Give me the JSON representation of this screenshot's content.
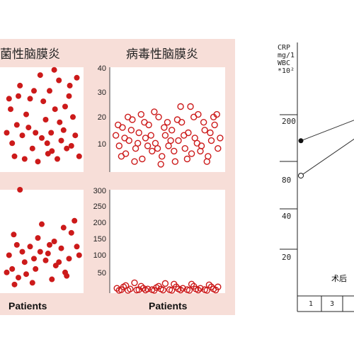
{
  "panels": {
    "bacterial_title": "菌性脑膜炎",
    "viral_title": "病毒性脑膜炎",
    "xlabel": "Patients",
    "top_ticks": [
      "40",
      "30",
      "20",
      "10"
    ],
    "bottom_ticks": [
      "300",
      "250",
      "200",
      "150",
      "100",
      "50"
    ]
  },
  "right_chart": {
    "ylabel_lines": [
      "CRP",
      "mg/1",
      "WBC",
      "*10²"
    ],
    "ticks": [
      "200",
      "80",
      "40",
      "20"
    ],
    "xlabel": "术后"
  },
  "colors": {
    "marker": "#cc1a1a",
    "background": "#f7ded8"
  },
  "chart_data": [
    {
      "type": "scatter",
      "title": "菌性脑膜炎",
      "xlabel": "Patients",
      "marker": "filled",
      "points": [
        [
          10,
          24
        ],
        [
          22,
          33
        ],
        [
          35,
          28
        ],
        [
          48,
          37
        ],
        [
          60,
          31
        ],
        [
          72,
          35
        ],
        [
          85,
          29
        ],
        [
          95,
          36
        ],
        [
          18,
          18
        ],
        [
          30,
          22
        ],
        [
          42,
          15
        ],
        [
          55,
          20
        ],
        [
          67,
          24
        ],
        [
          78,
          16
        ],
        [
          90,
          21
        ],
        [
          12,
          11
        ],
        [
          25,
          14
        ],
        [
          38,
          9
        ],
        [
          50,
          13
        ],
        [
          63,
          8
        ],
        [
          75,
          12
        ],
        [
          88,
          10
        ],
        [
          15,
          6
        ],
        [
          28,
          5
        ],
        [
          45,
          4
        ],
        [
          58,
          7
        ],
        [
          70,
          5
        ],
        [
          82,
          9
        ],
        [
          98,
          6
        ],
        [
          33,
          17
        ],
        [
          52,
          27
        ],
        [
          66,
          39
        ],
        [
          80,
          25
        ],
        [
          93,
          14
        ],
        [
          20,
          29
        ],
        [
          40,
          31
        ],
        [
          57,
          11
        ],
        [
          73,
          19
        ],
        [
          86,
          33
        ],
        [
          5,
          15
        ],
        [
          8,
          28
        ],
        [
          62,
          15
        ]
      ]
    },
    {
      "type": "scatter",
      "title": "病毒性脑膜炎",
      "xlabel": "Patients",
      "ylim": [
        0,
        40
      ],
      "marker": "open",
      "points": [
        [
          3,
          14
        ],
        [
          6,
          10
        ],
        [
          9,
          17
        ],
        [
          12,
          7
        ],
        [
          15,
          12
        ],
        [
          18,
          20
        ],
        [
          21,
          9
        ],
        [
          24,
          15
        ],
        [
          27,
          5
        ],
        [
          30,
          13
        ],
        [
          33,
          18
        ],
        [
          36,
          8
        ],
        [
          39,
          11
        ],
        [
          42,
          21
        ],
        [
          45,
          6
        ],
        [
          48,
          14
        ],
        [
          51,
          10
        ],
        [
          54,
          16
        ],
        [
          57,
          4
        ],
        [
          60,
          12
        ],
        [
          63,
          19
        ],
        [
          66,
          9
        ],
        [
          69,
          15
        ],
        [
          72,
          7
        ],
        [
          75,
          13
        ],
        [
          78,
          22
        ],
        [
          81,
          10
        ],
        [
          84,
          16
        ],
        [
          87,
          6
        ],
        [
          90,
          12
        ],
        [
          93,
          18
        ],
        [
          96,
          9
        ],
        [
          5,
          18
        ],
        [
          11,
          13
        ],
        [
          17,
          16
        ],
        [
          23,
          11
        ],
        [
          29,
          19
        ],
        [
          35,
          14
        ],
        [
          41,
          9
        ],
        [
          47,
          17
        ],
        [
          53,
          12
        ],
        [
          59,
          20
        ],
        [
          65,
          14
        ],
        [
          71,
          25
        ],
        [
          77,
          11
        ],
        [
          83,
          19
        ],
        [
          89,
          15
        ],
        [
          95,
          22
        ],
        [
          8,
          6
        ],
        [
          20,
          4
        ],
        [
          44,
          3
        ],
        [
          62,
          25
        ],
        [
          68,
          5
        ],
        [
          86,
          4
        ],
        [
          98,
          13
        ],
        [
          14,
          21
        ],
        [
          26,
          22
        ],
        [
          38,
          23
        ],
        [
          50,
          19
        ],
        [
          74,
          21
        ],
        [
          92,
          21
        ],
        [
          56,
          8
        ],
        [
          32,
          10
        ],
        [
          80,
          8
        ]
      ]
    },
    {
      "type": "scatter",
      "title": "菌性脑膜炎",
      "xlabel": "Patients",
      "marker": "filled",
      "points": [
        [
          22,
          300
        ],
        [
          14,
          170
        ],
        [
          8,
          110
        ],
        [
          12,
          70
        ],
        [
          20,
          45
        ],
        [
          28,
          90
        ],
        [
          35,
          135
        ],
        [
          42,
          70
        ],
        [
          50,
          200
        ],
        [
          58,
          115
        ],
        [
          66,
          150
        ],
        [
          72,
          90
        ],
        [
          80,
          60
        ],
        [
          88,
          175
        ],
        [
          95,
          135
        ],
        [
          18,
          140
        ],
        [
          30,
          55
        ],
        [
          45,
          160
        ],
        [
          55,
          95
        ],
        [
          63,
          40
        ],
        [
          75,
          130
        ],
        [
          85,
          100
        ],
        [
          92,
          210
        ],
        [
          5,
          60
        ],
        [
          38,
          30
        ],
        [
          48,
          120
        ],
        [
          68,
          80
        ],
        [
          78,
          190
        ],
        [
          98,
          110
        ],
        [
          25,
          120
        ],
        [
          60,
          140
        ],
        [
          82,
          50
        ],
        [
          40,
          100
        ],
        [
          15,
          25
        ]
      ]
    },
    {
      "type": "scatter",
      "title": "病毒性脑膜炎",
      "xlabel": "Patients",
      "ylim": [
        0,
        300
      ],
      "marker": "open",
      "points": [
        [
          4,
          14
        ],
        [
          8,
          10
        ],
        [
          12,
          22
        ],
        [
          16,
          12
        ],
        [
          20,
          30
        ],
        [
          24,
          10
        ],
        [
          28,
          14
        ],
        [
          32,
          12
        ],
        [
          36,
          10
        ],
        [
          40,
          16
        ],
        [
          44,
          12
        ],
        [
          48,
          28
        ],
        [
          52,
          10
        ],
        [
          56,
          26
        ],
        [
          60,
          12
        ],
        [
          64,
          14
        ],
        [
          68,
          10
        ],
        [
          72,
          26
        ],
        [
          76,
          12
        ],
        [
          80,
          14
        ],
        [
          84,
          10
        ],
        [
          88,
          24
        ],
        [
          92,
          12
        ],
        [
          96,
          18
        ],
        [
          6,
          8
        ],
        [
          14,
          8
        ],
        [
          22,
          9
        ],
        [
          30,
          9
        ],
        [
          38,
          8
        ],
        [
          46,
          9
        ],
        [
          54,
          8
        ],
        [
          62,
          9
        ],
        [
          70,
          8
        ],
        [
          78,
          9
        ],
        [
          86,
          8
        ],
        [
          94,
          9
        ],
        [
          10,
          18
        ],
        [
          26,
          20
        ],
        [
          42,
          20
        ],
        [
          58,
          18
        ],
        [
          74,
          20
        ],
        [
          90,
          18
        ]
      ]
    },
    {
      "type": "line",
      "ylabel": "CRP mg/1 WBC *10²",
      "yticks": [
        "200",
        "80",
        "40",
        "20"
      ],
      "xlabel": "术后",
      "xticks": [
        "1",
        "3"
      ],
      "series": [
        {
          "marker": "filled",
          "points": [
            [
              "1",
              120
            ],
            [
              "3",
              200
            ]
          ]
        },
        {
          "marker": "open",
          "points": [
            [
              "1",
              65
            ],
            [
              "3",
              150
            ]
          ]
        }
      ]
    }
  ]
}
